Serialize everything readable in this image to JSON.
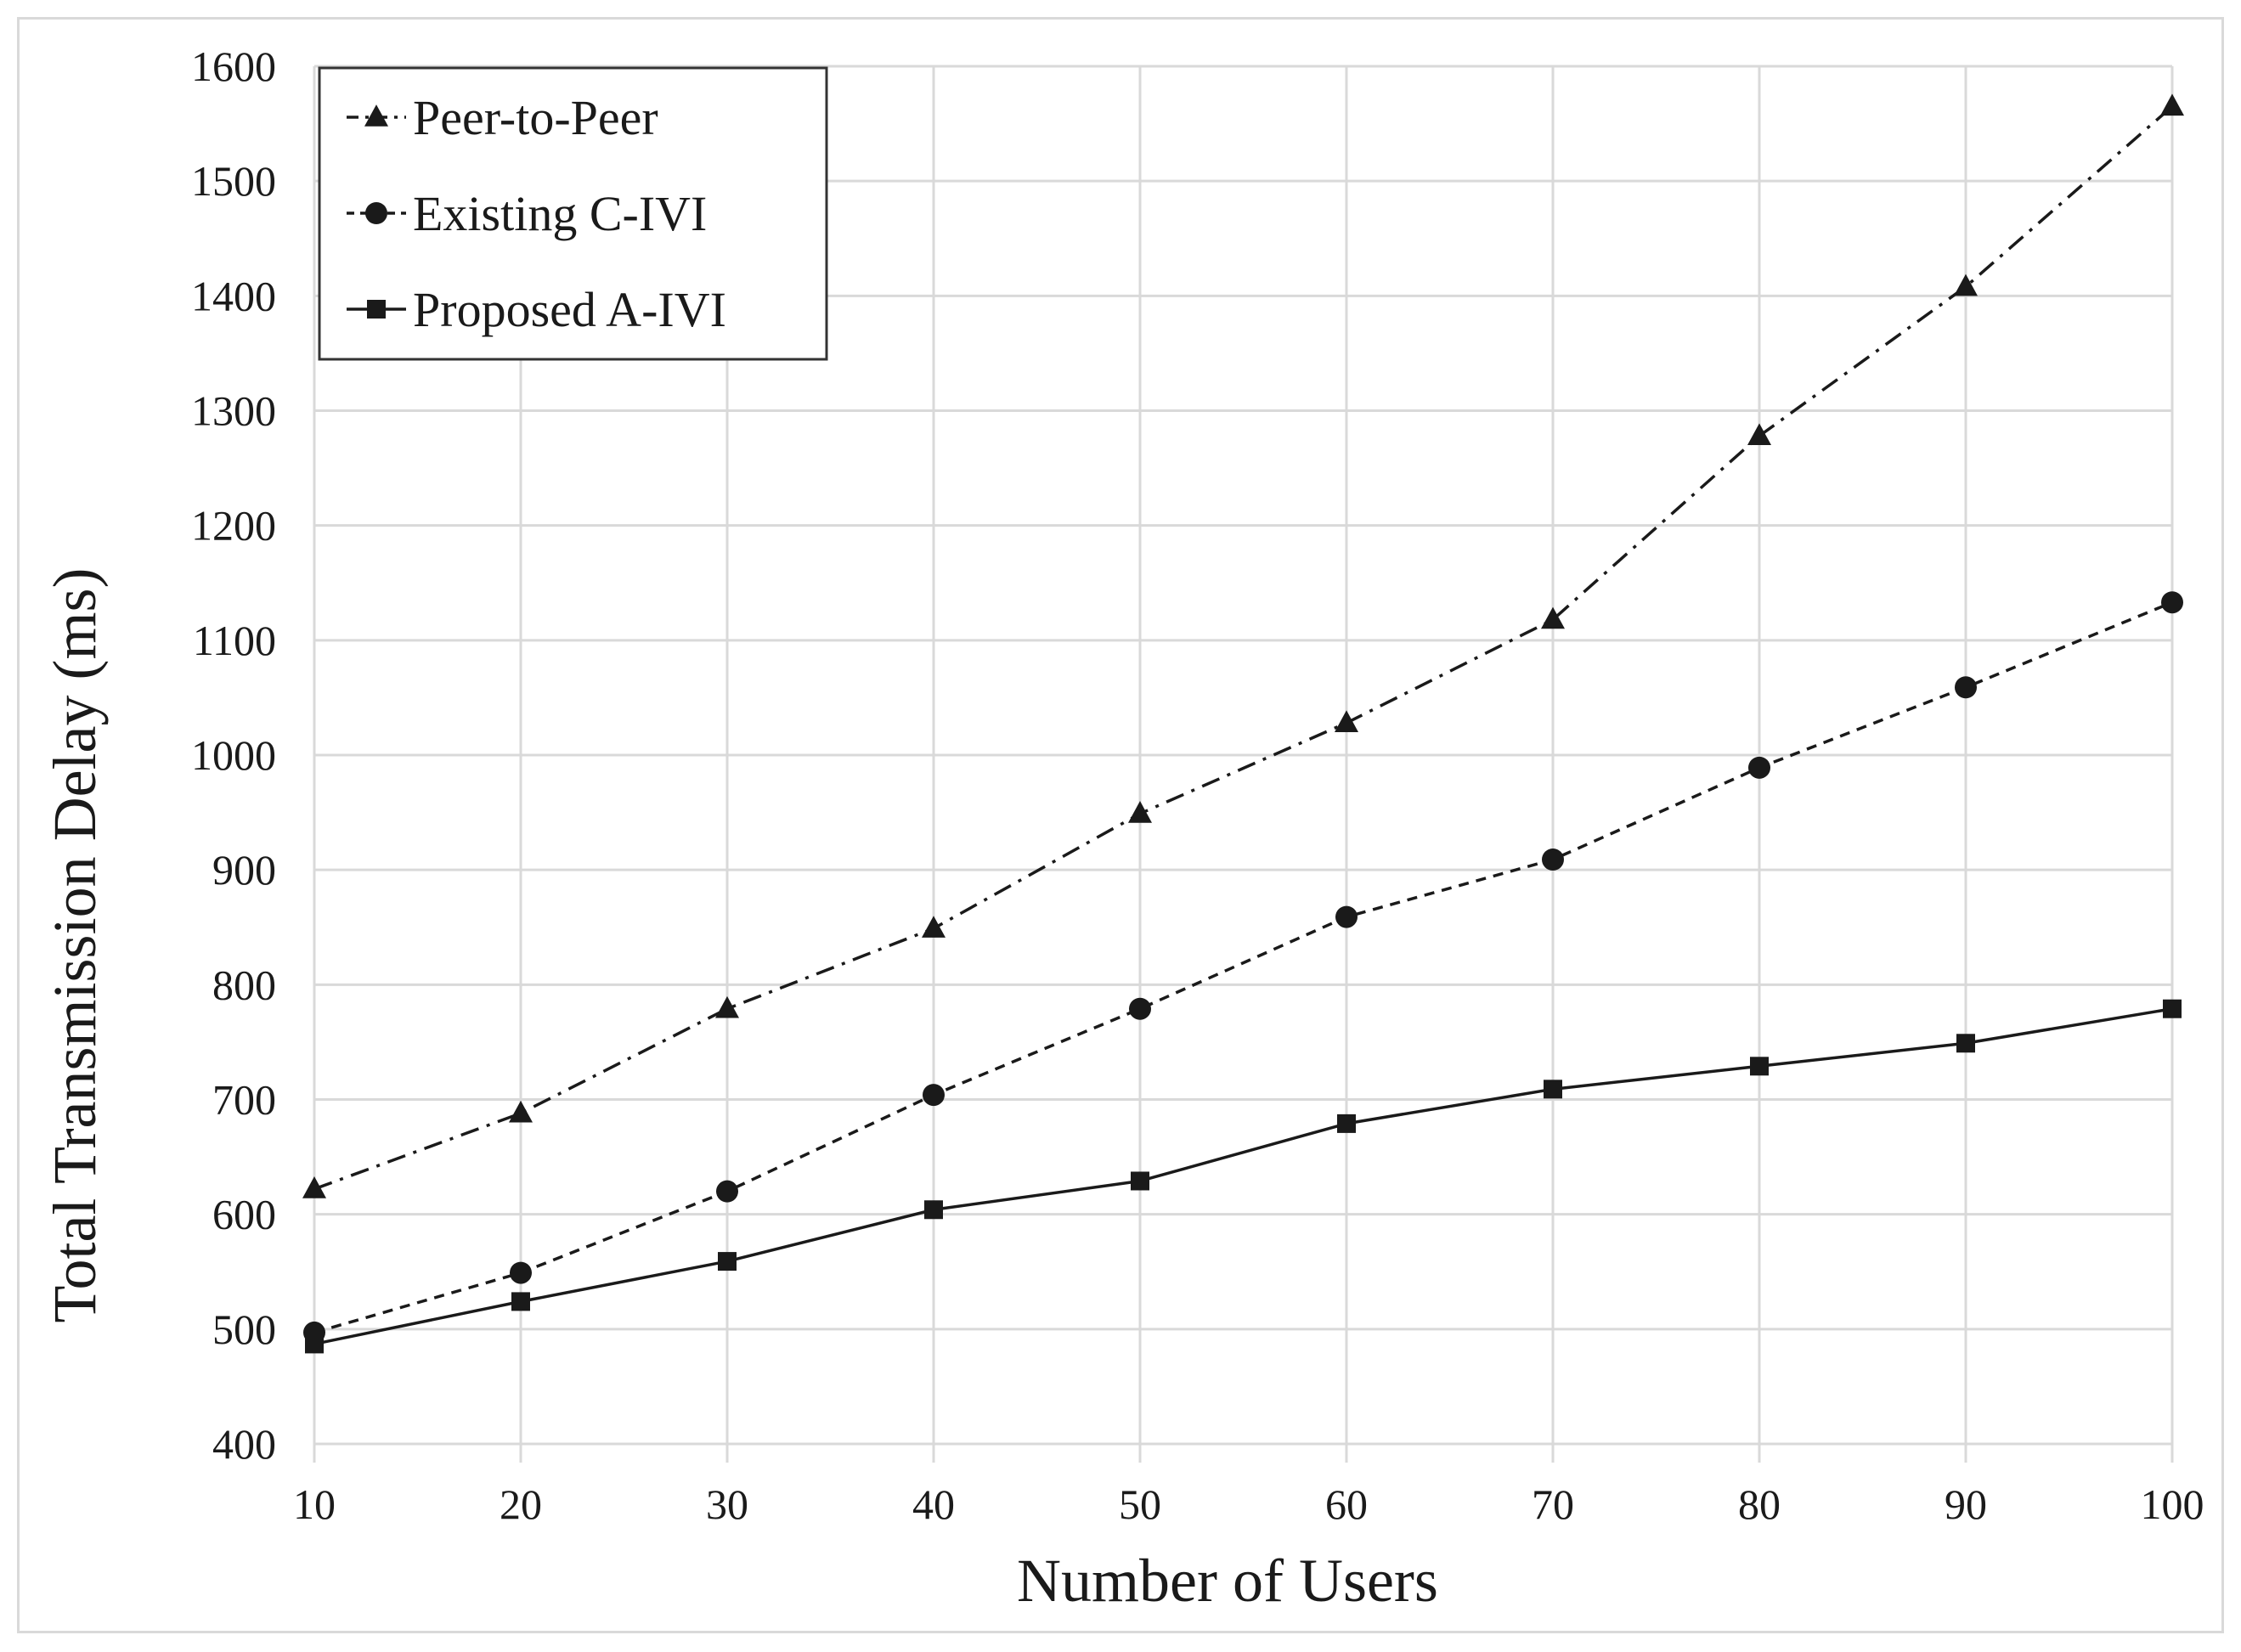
{
  "chart_data": {
    "type": "line",
    "title": "",
    "xlabel": "Number of Users",
    "ylabel": "Total Transmission Delay (ms)",
    "x": [
      10,
      20,
      30,
      40,
      50,
      60,
      70,
      80,
      90,
      100
    ],
    "xlim": [
      10,
      100
    ],
    "ylim": [
      400,
      1600
    ],
    "xticks": [
      "10",
      "20",
      "30",
      "40",
      "50",
      "60",
      "70",
      "80",
      "90",
      "100"
    ],
    "yticks": [
      "400",
      "500",
      "600",
      "700",
      "800",
      "900",
      "1000",
      "1100",
      "1200",
      "1300",
      "1400",
      "1500",
      "1600"
    ],
    "grid": true,
    "legend_position": "top-left",
    "series": [
      {
        "name": "Peer-to-Peer",
        "marker": "triangle",
        "line_style": "dash-dot",
        "values": [
          622,
          688,
          779,
          849,
          949,
          1028,
          1118,
          1278,
          1408,
          1565
        ]
      },
      {
        "name": "Existing C-IVI",
        "marker": "circle",
        "line_style": "dashed",
        "values": [
          497,
          549,
          620,
          704,
          779,
          859,
          909,
          989,
          1059,
          1133
        ]
      },
      {
        "name": "Proposed A-IVI",
        "marker": "square",
        "line_style": "solid",
        "values": [
          487,
          524,
          559,
          604,
          629,
          679,
          709,
          729,
          749,
          779
        ]
      }
    ],
    "colors": {
      "line": "#1a1a1a",
      "grid": "#d9d9d9",
      "text": "#1a1a1a"
    }
  }
}
